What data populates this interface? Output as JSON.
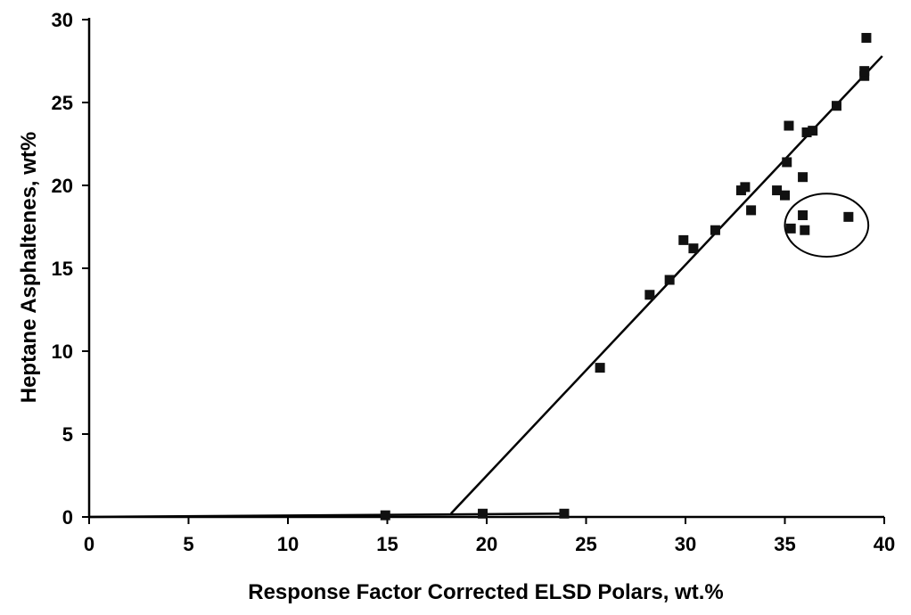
{
  "chart_data": {
    "type": "scatter",
    "title": "",
    "xlabel": "Response Factor Corrected ELSD Polars, wt.%",
    "ylabel": "Heptane Asphaltenes, wt%",
    "xlim": [
      0,
      40
    ],
    "ylim": [
      0,
      30
    ],
    "x_ticks": [
      "0",
      "5",
      "10",
      "15",
      "20",
      "25",
      "30",
      "35",
      "40"
    ],
    "y_ticks": [
      "0",
      "5",
      "10",
      "15",
      "20",
      "25",
      "30"
    ],
    "grid": false,
    "legend": "none",
    "marker": "square",
    "colors": {
      "marker": "#111111",
      "line": "#000000",
      "axis": "#000000"
    },
    "series": [
      {
        "points": [
          {
            "x": 14.9,
            "y": 0.1
          },
          {
            "x": 19.8,
            "y": 0.2
          },
          {
            "x": 23.9,
            "y": 0.2
          },
          {
            "x": 25.7,
            "y": 9.0
          },
          {
            "x": 28.2,
            "y": 13.4
          },
          {
            "x": 29.2,
            "y": 14.3
          },
          {
            "x": 29.9,
            "y": 16.7
          },
          {
            "x": 30.4,
            "y": 16.2
          },
          {
            "x": 31.5,
            "y": 17.3
          },
          {
            "x": 32.8,
            "y": 19.7
          },
          {
            "x": 33.0,
            "y": 19.9
          },
          {
            "x": 33.3,
            "y": 18.5
          },
          {
            "x": 34.6,
            "y": 19.7
          },
          {
            "x": 35.0,
            "y": 19.4
          },
          {
            "x": 35.1,
            "y": 21.4
          },
          {
            "x": 35.2,
            "y": 23.6
          },
          {
            "x": 35.3,
            "y": 17.4
          },
          {
            "x": 35.9,
            "y": 20.5
          },
          {
            "x": 35.9,
            "y": 18.2
          },
          {
            "x": 36.0,
            "y": 17.3
          },
          {
            "x": 36.1,
            "y": 23.2
          },
          {
            "x": 36.4,
            "y": 23.3
          },
          {
            "x": 37.6,
            "y": 24.8
          },
          {
            "x": 38.2,
            "y": 18.1
          },
          {
            "x": 39.0,
            "y": 26.6
          },
          {
            "x": 39.0,
            "y": 26.9
          },
          {
            "x": 39.1,
            "y": 28.9
          }
        ]
      }
    ],
    "fit_lines": [
      {
        "points": [
          {
            "x": 0,
            "y": 0
          },
          {
            "x": 24,
            "y": 0.2
          }
        ]
      },
      {
        "points": [
          {
            "x": 18.2,
            "y": 0.2
          },
          {
            "x": 39.9,
            "y": 27.8
          }
        ]
      }
    ],
    "annotations": [
      {
        "shape": "ellipse",
        "center": {
          "x": 37.1,
          "y": 17.6
        },
        "rx": 2.1,
        "ry": 1.9
      }
    ]
  }
}
